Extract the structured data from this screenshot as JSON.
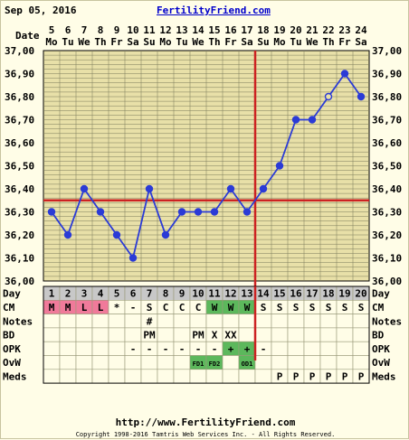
{
  "header": {
    "date": "Sep 05, 2016",
    "brand": "FertilityFriend.com"
  },
  "footer": {
    "url": "http://www.FertilityFriend.com",
    "copyright": "Copyright 1998-2016 Tamtris Web Services Inc. - All Rights Reserved."
  },
  "chart_data": {
    "type": "line",
    "date_label": "Date",
    "dates": [
      "5",
      "6",
      "7",
      "8",
      "9",
      "10",
      "11",
      "12",
      "13",
      "14",
      "15",
      "16",
      "17",
      "18",
      "19",
      "20",
      "21",
      "22",
      "23",
      "24"
    ],
    "weekdays": [
      "Mo",
      "Tu",
      "We",
      "Th",
      "Fr",
      "Sa",
      "Su",
      "Mo",
      "Tu",
      "We",
      "Th",
      "Fr",
      "Sa",
      "Su",
      "Mo",
      "Tu",
      "We",
      "Th",
      "Fr",
      "Sa"
    ],
    "y_ticks": [
      "37,00",
      "36,90",
      "36,80",
      "36,70",
      "36,60",
      "36,50",
      "36,40",
      "36,30",
      "36,20",
      "36,10",
      "36,00"
    ],
    "ylim": [
      36.0,
      37.0
    ],
    "temperatures": [
      36.3,
      36.2,
      36.4,
      36.3,
      36.2,
      36.1,
      36.4,
      36.2,
      36.3,
      36.3,
      36.3,
      36.4,
      36.3,
      36.4,
      36.5,
      36.7,
      36.7,
      36.8,
      36.9,
      36.8
    ],
    "open_points": [
      17
    ],
    "coverline": 36.35,
    "ovulation_day": 13,
    "rows": [
      {
        "label": "Day",
        "values": [
          "1",
          "2",
          "3",
          "4",
          "5",
          "6",
          "7",
          "8",
          "9",
          "10",
          "11",
          "12",
          "13",
          "14",
          "15",
          "16",
          "17",
          "18",
          "19",
          "20"
        ]
      },
      {
        "label": "CM",
        "values": [
          "M",
          "M",
          "L",
          "L",
          "*",
          "-",
          "S",
          "C",
          "C",
          "C",
          "W",
          "W",
          "W",
          "S",
          "S",
          "S",
          "S",
          "S",
          "S",
          "S"
        ]
      },
      {
        "label": "Notes",
        "values": [
          "",
          "",
          "",
          "",
          "",
          "",
          "#",
          "",
          "",
          "",
          "",
          "",
          "",
          "",
          "",
          "",
          "",
          "",
          "",
          ""
        ]
      },
      {
        "label": "BD",
        "values": [
          "",
          "",
          "",
          "",
          "",
          "",
          "PM",
          "",
          "",
          "PM",
          "X",
          "XX",
          "",
          "",
          "",
          "",
          "",
          "",
          "",
          ""
        ]
      },
      {
        "label": "OPK",
        "values": [
          "",
          "",
          "",
          "",
          "",
          "-",
          "-",
          "-",
          "-",
          "-",
          "-",
          "+",
          "+",
          "-",
          "",
          "",
          "",
          "",
          "",
          ""
        ]
      },
      {
        "label": "OvW",
        "values": [
          "",
          "",
          "",
          "",
          "",
          "",
          "",
          "",
          "",
          "FD1",
          "FD2",
          "",
          "OD1",
          "",
          "",
          "",
          "",
          "",
          "",
          ""
        ]
      },
      {
        "label": "Meds",
        "values": [
          "",
          "",
          "",
          "",
          "",
          "",
          "",
          "",
          "",
          "",
          "",
          "",
          "",
          "",
          "P",
          "P",
          "P",
          "P",
          "P",
          "P"
        ]
      }
    ],
    "colors": {
      "line": "#2b3bd6",
      "coverline": "#cc2222",
      "grid": "#7a7a5a",
      "plot_bg": "#e8e0a8",
      "menstruation": "#f07a9a",
      "fertile": "#5cb85c",
      "day_row": "#c8c8c8"
    }
  }
}
